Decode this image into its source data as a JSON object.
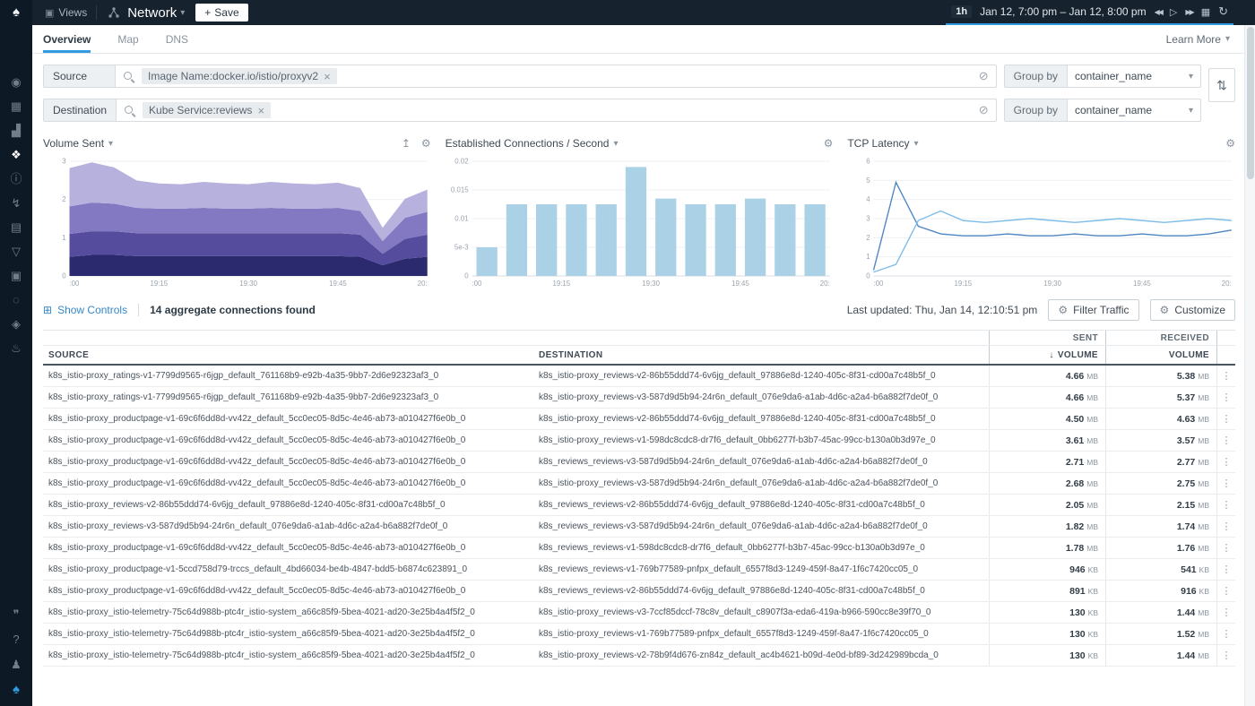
{
  "icons": {
    "views": "▣",
    "caret": "▾",
    "plus": "+",
    "rewind": "◀◀",
    "play": "▷",
    "forward": "▶▶",
    "calendar": "▦",
    "refresh": "↻",
    "close": "×",
    "clear": "⊘",
    "swap": "⇅",
    "gear": "⚙",
    "share": "↥",
    "show_controls": "⊞",
    "sort_desc": "↓",
    "kebab": "⋮"
  },
  "sidebar": {
    "logo_glyph": "♠",
    "icons": [
      {
        "name": "sidebar-item-explore",
        "glyph": "◉"
      },
      {
        "name": "sidebar-item-dashboards",
        "glyph": "▦"
      },
      {
        "name": "sidebar-item-metrics",
        "glyph": "▟"
      },
      {
        "name": "sidebar-item-network",
        "glyph": "❖",
        "active": true
      },
      {
        "name": "sidebar-item-alerts",
        "glyph": "ⓘ"
      },
      {
        "name": "sidebar-item-events",
        "glyph": "↯"
      },
      {
        "name": "sidebar-item-captures",
        "glyph": "▤"
      },
      {
        "name": "sidebar-item-policies",
        "glyph": "▽"
      },
      {
        "name": "sidebar-item-library",
        "glyph": "▣"
      },
      {
        "name": "sidebar-item-activity",
        "glyph": "◌"
      },
      {
        "name": "sidebar-item-compliance",
        "glyph": "◈"
      },
      {
        "name": "sidebar-item-benchmarks",
        "glyph": "♨"
      }
    ],
    "bottom_icons": [
      {
        "name": "chat-icon",
        "glyph": "❞"
      },
      {
        "name": "help-icon",
        "glyph": "?"
      },
      {
        "name": "users-icon",
        "glyph": "♟"
      },
      {
        "name": "sysdig-logo-bottom",
        "glyph": "♠"
      }
    ]
  },
  "topbar": {
    "views_label": "Views",
    "title": "Network",
    "save_label": "Save",
    "range_badge": "1h",
    "range_text": "Jan 12, 7:00 pm – Jan 12, 8:00 pm"
  },
  "tabs_bar": {
    "tabs": [
      {
        "label": "Overview"
      },
      {
        "label": "Map"
      },
      {
        "label": "DNS"
      }
    ],
    "learn_more": "Learn More"
  },
  "filters": {
    "source": {
      "label": "Source",
      "tag": "Image Name:docker.io/istio/proxyv2",
      "group_by": "Group by",
      "group_value": "container_name"
    },
    "destination": {
      "label": "Destination",
      "tag": "Kube Service:reviews",
      "group_by": "Group by",
      "group_value": "container_name"
    }
  },
  "controls": {
    "show_controls": "Show Controls",
    "aggregate": "14 aggregate connections found",
    "last_updated": "Last updated: Thu, Jan 14, 12:10:51 pm",
    "filter_traffic": "Filter Traffic",
    "customize": "Customize"
  },
  "table": {
    "header": {
      "sent": "SENT",
      "received": "RECEIVED",
      "source": "SOURCE",
      "destination": "DESTINATION",
      "volume": "VOLUME"
    },
    "rows": [
      {
        "source": "k8s_istio-proxy_ratings-v1-7799d9565-r6jgp_default_761168b9-e92b-4a35-9bb7-2d6e92323af3_0",
        "destination": "k8s_istio-proxy_reviews-v2-86b55ddd74-6v6jg_default_97886e8d-1240-405c-8f31-cd00a7c48b5f_0",
        "sent_value": "4.66",
        "sent_unit": "MB",
        "received_value": "5.38",
        "received_unit": "MB"
      },
      {
        "source": "k8s_istio-proxy_ratings-v1-7799d9565-r6jgp_default_761168b9-e92b-4a35-9bb7-2d6e92323af3_0",
        "destination": "k8s_istio-proxy_reviews-v3-587d9d5b94-24r6n_default_076e9da6-a1ab-4d6c-a2a4-b6a882f7de0f_0",
        "sent_value": "4.66",
        "sent_unit": "MB",
        "received_value": "5.37",
        "received_unit": "MB"
      },
      {
        "source": "k8s_istio-proxy_productpage-v1-69c6f6dd8d-vv42z_default_5cc0ec05-8d5c-4e46-ab73-a010427f6e0b_0",
        "destination": "k8s_istio-proxy_reviews-v2-86b55ddd74-6v6jg_default_97886e8d-1240-405c-8f31-cd00a7c48b5f_0",
        "sent_value": "4.50",
        "sent_unit": "MB",
        "received_value": "4.63",
        "received_unit": "MB"
      },
      {
        "source": "k8s_istio-proxy_productpage-v1-69c6f6dd8d-vv42z_default_5cc0ec05-8d5c-4e46-ab73-a010427f6e0b_0",
        "destination": "k8s_istio-proxy_reviews-v1-598dc8cdc8-dr7f6_default_0bb6277f-b3b7-45ac-99cc-b130a0b3d97e_0",
        "sent_value": "3.61",
        "sent_unit": "MB",
        "received_value": "3.57",
        "received_unit": "MB"
      },
      {
        "source": "k8s_istio-proxy_productpage-v1-69c6f6dd8d-vv42z_default_5cc0ec05-8d5c-4e46-ab73-a010427f6e0b_0",
        "destination": "k8s_reviews_reviews-v3-587d9d5b94-24r6n_default_076e9da6-a1ab-4d6c-a2a4-b6a882f7de0f_0",
        "sent_value": "2.71",
        "sent_unit": "MB",
        "received_value": "2.77",
        "received_unit": "MB"
      },
      {
        "source": "k8s_istio-proxy_productpage-v1-69c6f6dd8d-vv42z_default_5cc0ec05-8d5c-4e46-ab73-a010427f6e0b_0",
        "destination": "k8s_istio-proxy_reviews-v3-587d9d5b94-24r6n_default_076e9da6-a1ab-4d6c-a2a4-b6a882f7de0f_0",
        "sent_value": "2.68",
        "sent_unit": "MB",
        "received_value": "2.75",
        "received_unit": "MB"
      },
      {
        "source": "k8s_istio-proxy_reviews-v2-86b55ddd74-6v6jg_default_97886e8d-1240-405c-8f31-cd00a7c48b5f_0",
        "destination": "k8s_reviews_reviews-v2-86b55ddd74-6v6jg_default_97886e8d-1240-405c-8f31-cd00a7c48b5f_0",
        "sent_value": "2.05",
        "sent_unit": "MB",
        "received_value": "2.15",
        "received_unit": "MB"
      },
      {
        "source": "k8s_istio-proxy_reviews-v3-587d9d5b94-24r6n_default_076e9da6-a1ab-4d6c-a2a4-b6a882f7de0f_0",
        "destination": "k8s_reviews_reviews-v3-587d9d5b94-24r6n_default_076e9da6-a1ab-4d6c-a2a4-b6a882f7de0f_0",
        "sent_value": "1.82",
        "sent_unit": "MB",
        "received_value": "1.74",
        "received_unit": "MB"
      },
      {
        "source": "k8s_istio-proxy_productpage-v1-69c6f6dd8d-vv42z_default_5cc0ec05-8d5c-4e46-ab73-a010427f6e0b_0",
        "destination": "k8s_reviews_reviews-v1-598dc8cdc8-dr7f6_default_0bb6277f-b3b7-45ac-99cc-b130a0b3d97e_0",
        "sent_value": "1.78",
        "sent_unit": "MB",
        "received_value": "1.76",
        "received_unit": "MB"
      },
      {
        "source": "k8s_istio-proxy_productpage-v1-5ccd758d79-trccs_default_4bd66034-be4b-4847-bdd5-b6874c623891_0",
        "destination": "k8s_reviews_reviews-v1-769b77589-pnfpx_default_6557f8d3-1249-459f-8a47-1f6c7420cc05_0",
        "sent_value": "946",
        "sent_unit": "KB",
        "received_value": "541",
        "received_unit": "KB"
      },
      {
        "source": "k8s_istio-proxy_productpage-v1-69c6f6dd8d-vv42z_default_5cc0ec05-8d5c-4e46-ab73-a010427f6e0b_0",
        "destination": "k8s_reviews_reviews-v2-86b55ddd74-6v6jg_default_97886e8d-1240-405c-8f31-cd00a7c48b5f_0",
        "sent_value": "891",
        "sent_unit": "KB",
        "received_value": "916",
        "received_unit": "KB"
      },
      {
        "source": "k8s_istio-proxy_istio-telemetry-75c64d988b-ptc4r_istio-system_a66c85f9-5bea-4021-ad20-3e25b4a4f5f2_0",
        "destination": "k8s_istio-proxy_reviews-v3-7ccf85dccf-78c8v_default_c8907f3a-eda6-419a-b966-590cc8e39f70_0",
        "sent_value": "130",
        "sent_unit": "KB",
        "received_value": "1.44",
        "received_unit": "MB"
      },
      {
        "source": "k8s_istio-proxy_istio-telemetry-75c64d988b-ptc4r_istio-system_a66c85f9-5bea-4021-ad20-3e25b4a4f5f2_0",
        "destination": "k8s_istio-proxy_reviews-v1-769b77589-pnfpx_default_6557f8d3-1249-459f-8a47-1f6c7420cc05_0",
        "sent_value": "130",
        "sent_unit": "KB",
        "received_value": "1.52",
        "received_unit": "MB"
      },
      {
        "source": "k8s_istio-proxy_istio-telemetry-75c64d988b-ptc4r_istio-system_a66c85f9-5bea-4021-ad20-3e25b4a4f5f2_0",
        "destination": "k8s_istio-proxy_reviews-v2-78b9f4d676-zn84z_default_ac4b4621-b09d-4e0d-bf89-3d242989bcda_0",
        "sent_value": "130",
        "sent_unit": "KB",
        "received_value": "1.44",
        "received_unit": "MB"
      }
    ]
  },
  "chart_data": [
    {
      "type": "area",
      "title": "Volume Sent",
      "stacked": true,
      "x_tick_labels": [
        ":00",
        "19:15",
        "19:30",
        "19:45",
        "20:"
      ],
      "ylim": [
        0,
        3
      ],
      "y_ticks": [
        0,
        1,
        2,
        3
      ],
      "y_tick_labels": [
        "0",
        "1",
        "2",
        "3"
      ],
      "series": [
        {
          "name": "stack-1",
          "color": "#2c2a6e",
          "values": [
            0.5,
            0.55,
            0.55,
            0.52,
            0.52,
            0.52,
            0.52,
            0.52,
            0.52,
            0.52,
            0.52,
            0.52,
            0.52,
            0.5,
            0.28,
            0.45,
            0.5
          ]
        },
        {
          "name": "stack-2",
          "color": "#564c9e",
          "values": [
            0.6,
            0.62,
            0.62,
            0.6,
            0.6,
            0.6,
            0.6,
            0.6,
            0.6,
            0.6,
            0.6,
            0.6,
            0.6,
            0.58,
            0.3,
            0.52,
            0.58
          ]
        },
        {
          "name": "stack-3",
          "color": "#8379c2",
          "values": [
            0.72,
            0.75,
            0.72,
            0.66,
            0.64,
            0.64,
            0.66,
            0.64,
            0.64,
            0.66,
            0.64,
            0.64,
            0.66,
            0.62,
            0.33,
            0.55,
            0.6
          ]
        },
        {
          "name": "stack-4",
          "color": "#b7b1de",
          "values": [
            1.0,
            1.05,
            0.95,
            0.72,
            0.66,
            0.64,
            0.68,
            0.66,
            0.64,
            0.68,
            0.66,
            0.64,
            0.66,
            0.6,
            0.35,
            0.5,
            0.58
          ]
        }
      ]
    },
    {
      "type": "bar",
      "title": "Established Connections / Second",
      "x_tick_labels": [
        ":00",
        "19:15",
        "19:30",
        "19:45",
        "20:"
      ],
      "ylim": [
        0,
        0.02
      ],
      "y_ticks": [
        0,
        0.005,
        0.01,
        0.015,
        0.02
      ],
      "y_tick_labels": [
        "0",
        "5e-3",
        "0.01",
        "0.015",
        "0.02"
      ],
      "bar_color": "#abd1e6",
      "values": [
        0.005,
        0.0125,
        0.0125,
        0.0125,
        0.0125,
        0.019,
        0.0135,
        0.0125,
        0.0125,
        0.0135,
        0.0125,
        0.0125
      ]
    },
    {
      "type": "line",
      "title": "TCP Latency",
      "x_tick_labels": [
        ":00",
        "19:15",
        "19:30",
        "19:45",
        "20:"
      ],
      "ylim": [
        0,
        6
      ],
      "y_ticks": [
        0,
        1,
        2,
        3,
        4,
        5,
        6
      ],
      "y_tick_labels": [
        "0",
        "1",
        "2",
        "3",
        "4",
        "5",
        "6"
      ],
      "series": [
        {
          "name": "latency-series-1",
          "color": "#4f86c2",
          "values": [
            0.3,
            4.9,
            2.6,
            2.2,
            2.1,
            2.1,
            2.2,
            2.1,
            2.1,
            2.2,
            2.1,
            2.1,
            2.2,
            2.1,
            2.1,
            2.2,
            2.4
          ]
        },
        {
          "name": "latency-series-2",
          "color": "#7fbde8",
          "values": [
            0.2,
            0.6,
            2.9,
            3.4,
            2.9,
            2.8,
            2.9,
            3.0,
            2.9,
            2.8,
            2.9,
            3.0,
            2.9,
            2.8,
            2.9,
            3.0,
            2.9
          ]
        }
      ]
    }
  ]
}
